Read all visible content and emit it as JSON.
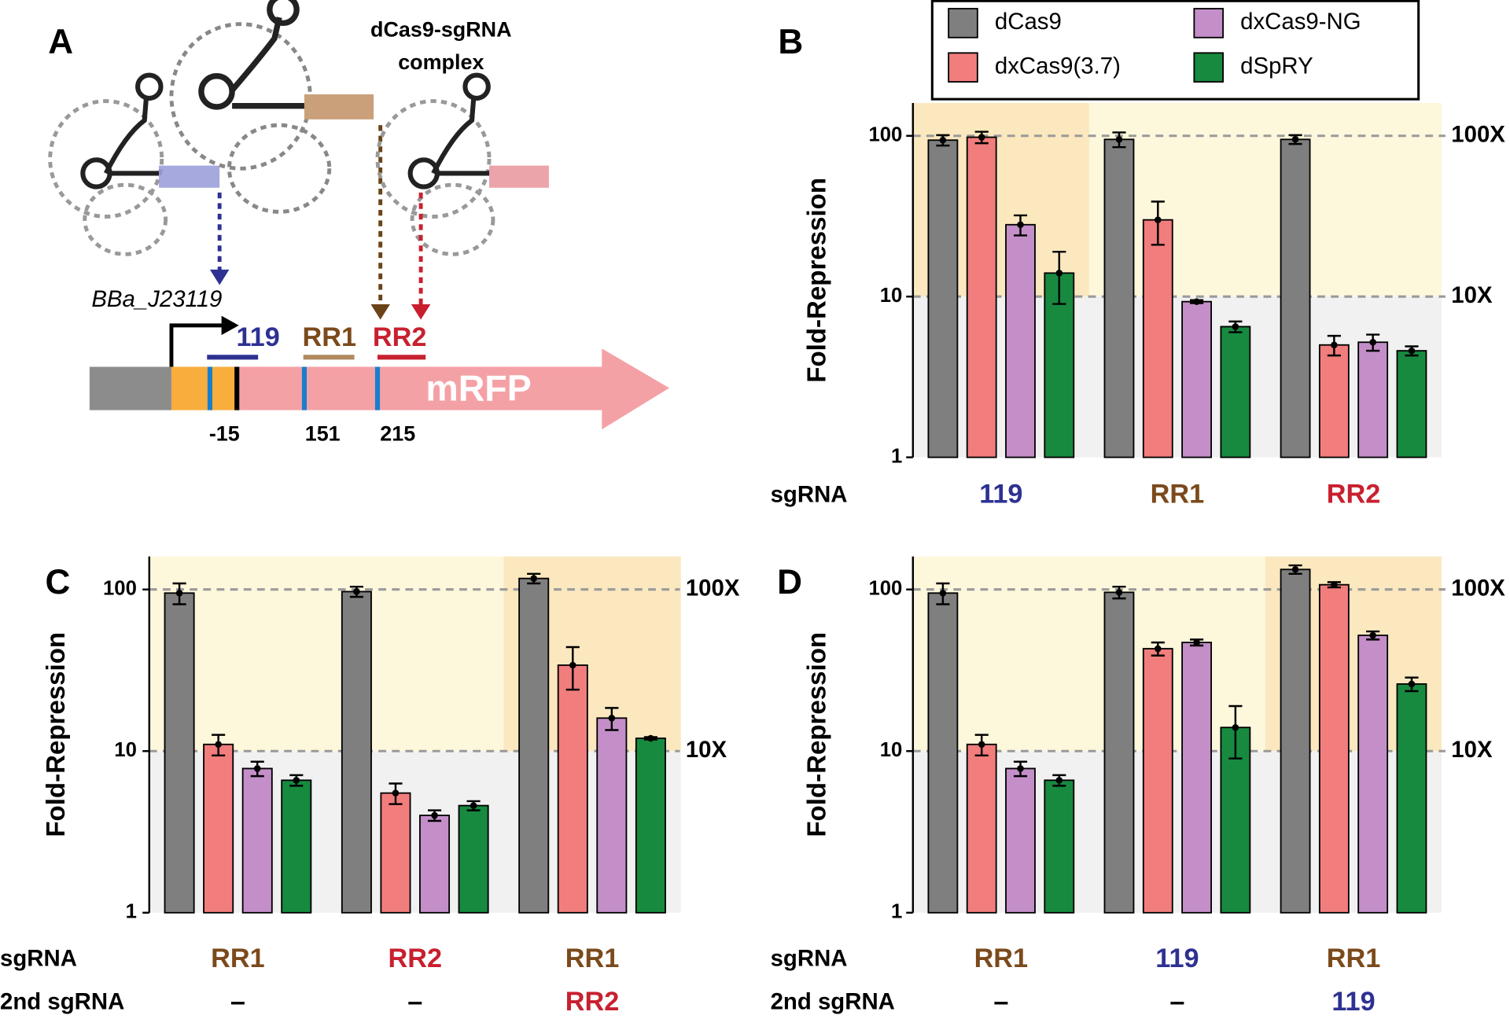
{
  "diagram": {
    "panel": "A",
    "complex_label": [
      "dCas9-sgRNA",
      "complex"
    ],
    "promoter": "BBa_J23119",
    "targets": [
      "119",
      "RR1",
      "RR2"
    ],
    "gene": "mRFP",
    "positions": [
      "-15",
      "151",
      "215"
    ]
  },
  "chart_data": [
    {
      "type": "bar",
      "panel": "B",
      "y_label": "Fold-Repression",
      "log_scale": true,
      "row_label": "sgRNA",
      "categories": [
        "119",
        "RR1",
        "RR2"
      ],
      "category_colors": [
        "#2e3192",
        "#7b4a1c",
        "#c8202f"
      ],
      "highlight_category": 0,
      "ylim": [
        1,
        160
      ],
      "yticks": [
        1,
        10,
        100
      ],
      "reference_lines": [
        {
          "value": 10,
          "label": "10X"
        },
        {
          "value": 100,
          "label": "100X"
        }
      ],
      "series": [
        {
          "name": "dCas9",
          "color": "#7f7f7f",
          "values": [
            94,
            95,
            95
          ],
          "errors": [
            7,
            10,
            6
          ]
        },
        {
          "name": "dxCas9(3.7)",
          "color": "#f17d7d",
          "values": [
            98,
            30,
            5
          ],
          "errors": [
            8,
            9,
            0.7
          ]
        },
        {
          "name": "dxCas9-NG",
          "color": "#c48fc8",
          "values": [
            28,
            9.3,
            5.2
          ],
          "errors": [
            4,
            0.2,
            0.6
          ]
        },
        {
          "name": "dSpRY",
          "color": "#178a3f",
          "values": [
            14,
            6.5,
            4.6
          ],
          "errors": [
            5,
            0.5,
            0.3
          ]
        }
      ]
    },
    {
      "type": "bar",
      "panel": "C",
      "y_label": "Fold-Repression",
      "log_scale": true,
      "row_label": "sgRNA",
      "categories": [
        "RR1",
        "RR2",
        "RR1"
      ],
      "category_colors": [
        "#7b4a1c",
        "#c8202f",
        "#7b4a1c"
      ],
      "second_row_label": "2nd sgRNA",
      "second_categories": [
        "–",
        "–",
        "RR2"
      ],
      "second_category_colors": [
        "#000000",
        "#000000",
        "#c8202f"
      ],
      "highlight_category": 2,
      "ylim": [
        1,
        160
      ],
      "yticks": [
        1,
        10,
        100
      ],
      "reference_lines": [
        {
          "value": 10,
          "label": "10X"
        },
        {
          "value": 100,
          "label": "100X"
        }
      ],
      "series": [
        {
          "color": "#7f7f7f",
          "values": [
            95,
            97,
            117
          ],
          "errors": [
            14,
            7,
            8
          ]
        },
        {
          "color": "#f17d7d",
          "values": [
            11,
            5.5,
            34
          ],
          "errors": [
            1.6,
            0.8,
            10
          ]
        },
        {
          "color": "#c48fc8",
          "values": [
            7.8,
            4.0,
            16
          ],
          "errors": [
            0.8,
            0.3,
            2.5
          ]
        },
        {
          "color": "#178a3f",
          "values": [
            6.6,
            4.6,
            12
          ],
          "errors": [
            0.5,
            0.3,
            0.2
          ]
        }
      ]
    },
    {
      "type": "bar",
      "panel": "D",
      "y_label": "Fold-Repression",
      "log_scale": true,
      "row_label": "sgRNA",
      "categories": [
        "RR1",
        "119",
        "RR1"
      ],
      "category_colors": [
        "#7b4a1c",
        "#2e3192",
        "#7b4a1c"
      ],
      "second_row_label": "2nd sgRNA",
      "second_categories": [
        "–",
        "–",
        "119"
      ],
      "second_category_colors": [
        "#000000",
        "#000000",
        "#2e3192"
      ],
      "highlight_category": 2,
      "ylim": [
        1,
        160
      ],
      "yticks": [
        1,
        10,
        100
      ],
      "reference_lines": [
        {
          "value": 10,
          "label": "10X"
        },
        {
          "value": 100,
          "label": "100X"
        }
      ],
      "series": [
        {
          "color": "#7f7f7f",
          "values": [
            95,
            96,
            133
          ],
          "errors": [
            14,
            8,
            8
          ]
        },
        {
          "color": "#f17d7d",
          "values": [
            11,
            43,
            107
          ],
          "errors": [
            1.6,
            4,
            4
          ]
        },
        {
          "color": "#c48fc8",
          "values": [
            7.8,
            47,
            52
          ],
          "errors": [
            0.8,
            2,
            3
          ]
        },
        {
          "color": "#178a3f",
          "values": [
            6.6,
            14,
            26
          ],
          "errors": [
            0.5,
            5,
            2.5
          ]
        }
      ]
    }
  ]
}
